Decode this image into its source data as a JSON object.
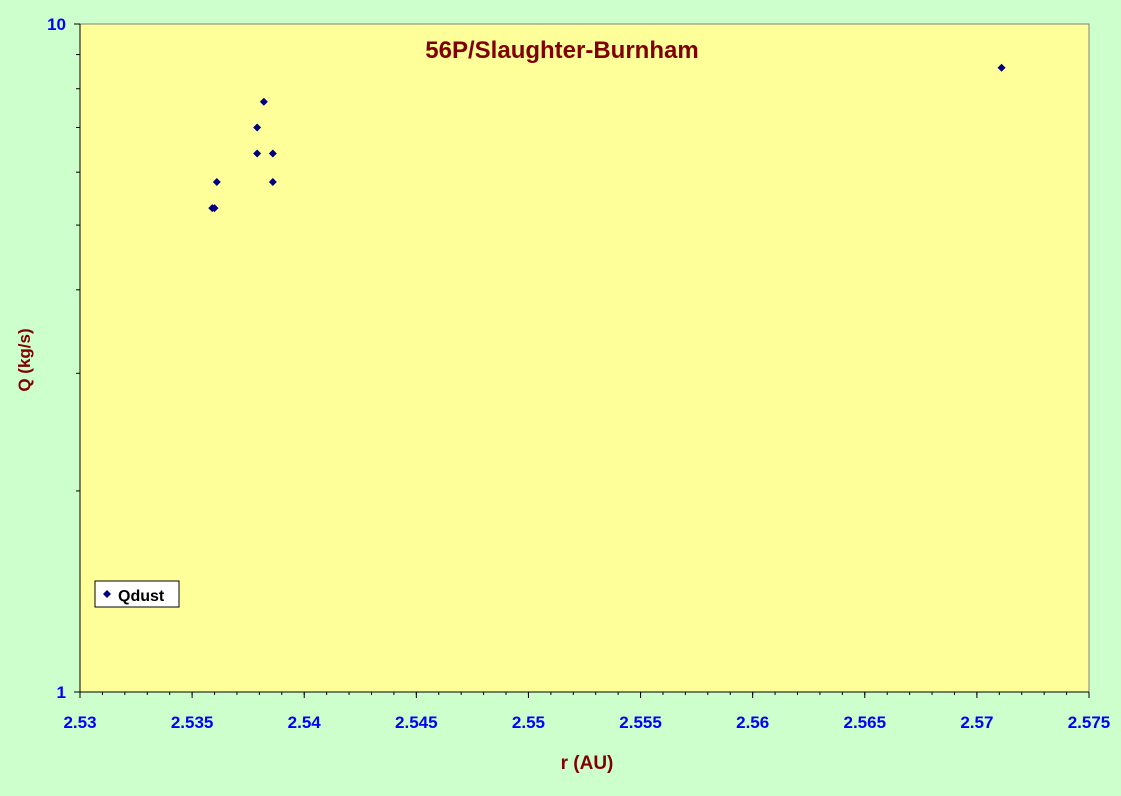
{
  "chart_data": {
    "type": "scatter",
    "title": "56P/Slaughter-Burnham",
    "xlabel": "r (AU)",
    "ylabel": "Q (kg/s)",
    "xlim": [
      2.53,
      2.575
    ],
    "ylim": [
      1,
      10
    ],
    "yscale": "log",
    "x_ticks": [
      "2.53",
      "2.535",
      "2.54",
      "2.545",
      "2.55",
      "2.555",
      "2.56",
      "2.565",
      "2.57",
      "2.575"
    ],
    "x_tick_values": [
      2.53,
      2.535,
      2.54,
      2.545,
      2.55,
      2.555,
      2.56,
      2.565,
      2.57,
      2.575
    ],
    "y_ticks": [
      "1",
      "10"
    ],
    "y_tick_values": [
      1,
      10
    ],
    "y_minor_values": [
      2,
      3,
      4,
      5,
      6,
      7,
      8,
      9
    ],
    "grid": false,
    "legend_position": "bottom-left",
    "series": [
      {
        "name": "Qdust",
        "marker": "diamond",
        "color": "#000080",
        "points": [
          {
            "x": 2.5359,
            "y": 5.3
          },
          {
            "x": 2.536,
            "y": 5.3
          },
          {
            "x": 2.5361,
            "y": 5.8
          },
          {
            "x": 2.5379,
            "y": 6.4
          },
          {
            "x": 2.5379,
            "y": 7.0
          },
          {
            "x": 2.5382,
            "y": 7.65
          },
          {
            "x": 2.5386,
            "y": 5.8
          },
          {
            "x": 2.5386,
            "y": 6.4
          },
          {
            "x": 2.5711,
            "y": 8.6
          }
        ]
      }
    ]
  },
  "colors": {
    "plot_background": "#ffff99",
    "page_background": "#ccffcc",
    "title": "#800000",
    "axis_label": "#800000",
    "tick_label": "#0000ff",
    "marker": "#000080"
  }
}
